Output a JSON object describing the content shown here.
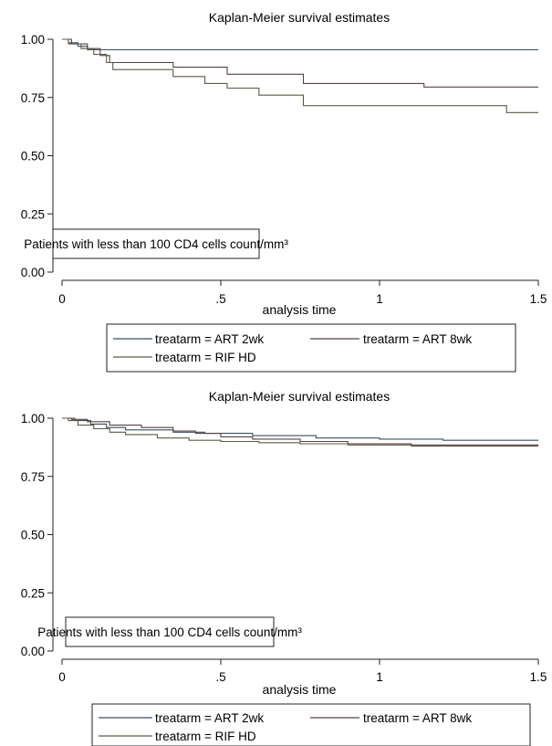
{
  "chart_data": [
    {
      "type": "line",
      "title": "Kaplan-Meier survival estimates",
      "xlabel": "analysis time",
      "ylabel": "",
      "xlim": [
        0,
        1.5
      ],
      "ylim": [
        0,
        1
      ],
      "xticks": [
        "0",
        ".5",
        "1",
        "1.5"
      ],
      "yticks": [
        "0.00",
        "0.25",
        "0.50",
        "0.75",
        "1.00"
      ],
      "annotation": "Patients with less than 100 CD4 cells count/mm³",
      "grid": false,
      "legend_position": "bottom",
      "series": [
        {
          "name": "treatarm = ART 2wk",
          "color": "#3a4f61",
          "steps": [
            [
              0,
              1.0
            ],
            [
              0.02,
              0.985
            ],
            [
              0.05,
              0.97
            ],
            [
              0.08,
              0.955
            ],
            [
              1.5,
              0.955
            ]
          ]
        },
        {
          "name": "treatarm = ART 8wk",
          "color": "#5a4040",
          "steps": [
            [
              0,
              1.0
            ],
            [
              0.03,
              0.98
            ],
            [
              0.08,
              0.96
            ],
            [
              0.12,
              0.93
            ],
            [
              0.15,
              0.9
            ],
            [
              0.35,
              0.88
            ],
            [
              0.52,
              0.85
            ],
            [
              0.76,
              0.81
            ],
            [
              1.14,
              0.795
            ],
            [
              1.5,
              0.795
            ]
          ]
        },
        {
          "name": "treatarm = RIF HD",
          "color": "#5a5a46",
          "steps": [
            [
              0,
              1.0
            ],
            [
              0.02,
              0.98
            ],
            [
              0.06,
              0.96
            ],
            [
              0.1,
              0.935
            ],
            [
              0.14,
              0.9
            ],
            [
              0.16,
              0.87
            ],
            [
              0.35,
              0.84
            ],
            [
              0.45,
              0.81
            ],
            [
              0.52,
              0.79
            ],
            [
              0.62,
              0.76
            ],
            [
              0.76,
              0.715
            ],
            [
              1.4,
              0.685
            ],
            [
              1.5,
              0.685
            ]
          ]
        }
      ]
    },
    {
      "type": "line",
      "title": "Kaplan-Meier survival estimates",
      "xlabel": "analysis time",
      "ylabel": "",
      "xlim": [
        0,
        1.5
      ],
      "ylim": [
        0,
        1
      ],
      "xticks": [
        "0",
        ".5",
        "1",
        "1.5"
      ],
      "yticks": [
        "0.00",
        "0.25",
        "0.50",
        "0.75",
        "1.00"
      ],
      "annotation": "Patients with less than 100 CD4 cells count/mm³",
      "grid": false,
      "legend_position": "bottom",
      "series": [
        {
          "name": "treatarm = ART 2wk",
          "color": "#3a4f61",
          "steps": [
            [
              0,
              1.0
            ],
            [
              0.04,
              0.99
            ],
            [
              0.09,
              0.975
            ],
            [
              0.14,
              0.96
            ],
            [
              0.2,
              0.95
            ],
            [
              0.35,
              0.94
            ],
            [
              0.45,
              0.935
            ],
            [
              0.6,
              0.925
            ],
            [
              0.8,
              0.915
            ],
            [
              1.0,
              0.91
            ],
            [
              1.2,
              0.905
            ],
            [
              1.5,
              0.905
            ]
          ]
        },
        {
          "name": "treatarm = ART 8wk",
          "color": "#5a4040",
          "steps": [
            [
              0,
              1.0
            ],
            [
              0.03,
              0.995
            ],
            [
              0.08,
              0.985
            ],
            [
              0.15,
              0.97
            ],
            [
              0.25,
              0.96
            ],
            [
              0.35,
              0.945
            ],
            [
              0.42,
              0.935
            ],
            [
              0.5,
              0.92
            ],
            [
              0.6,
              0.91
            ],
            [
              0.75,
              0.9
            ],
            [
              0.9,
              0.89
            ],
            [
              1.1,
              0.885
            ],
            [
              1.5,
              0.885
            ]
          ]
        },
        {
          "name": "treatarm = RIF HD",
          "color": "#5a5a46",
          "steps": [
            [
              0,
              1.0
            ],
            [
              0.02,
              0.99
            ],
            [
              0.05,
              0.97
            ],
            [
              0.1,
              0.955
            ],
            [
              0.15,
              0.94
            ],
            [
              0.2,
              0.93
            ],
            [
              0.3,
              0.915
            ],
            [
              0.4,
              0.905
            ],
            [
              0.5,
              0.9
            ],
            [
              0.62,
              0.895
            ],
            [
              0.75,
              0.89
            ],
            [
              0.9,
              0.885
            ],
            [
              1.1,
              0.88
            ],
            [
              1.5,
              0.88
            ]
          ]
        }
      ]
    }
  ]
}
